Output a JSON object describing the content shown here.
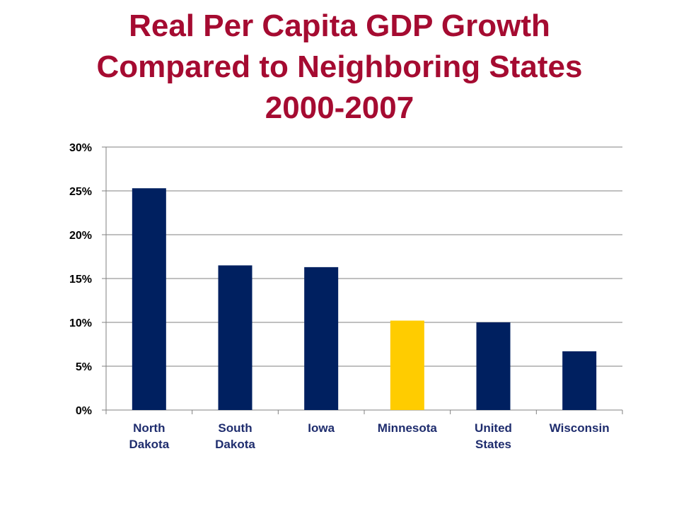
{
  "title_lines": [
    "Real Per Capita GDP Growth",
    "Compared to Neighboring States",
    "2000-2007"
  ],
  "colors": {
    "title": "#A50B31",
    "bar_default": "#002060",
    "bar_highlight": "#FFCC00",
    "grid": "#808080",
    "category_label": "#1F2D6E"
  },
  "chart_data": {
    "type": "bar",
    "title": "Real Per Capita GDP Growth Compared to Neighboring States 2000-2007",
    "categories": [
      [
        "North",
        "Dakota"
      ],
      [
        "South",
        "Dakota"
      ],
      [
        "Iowa"
      ],
      [
        "Minnesota"
      ],
      [
        "United",
        "States"
      ],
      [
        "Wisconsin"
      ]
    ],
    "values": [
      25.3,
      16.5,
      16.3,
      10.2,
      10.0,
      6.7
    ],
    "highlight": "Minnesota",
    "ylim": [
      0,
      30
    ],
    "yticks": [
      0,
      5,
      10,
      15,
      20,
      25,
      30
    ],
    "ytick_labels": [
      "0%",
      "5%",
      "10%",
      "15%",
      "20%",
      "25%",
      "30%"
    ],
    "grid": true,
    "xlabel": "",
    "ylabel": ""
  }
}
